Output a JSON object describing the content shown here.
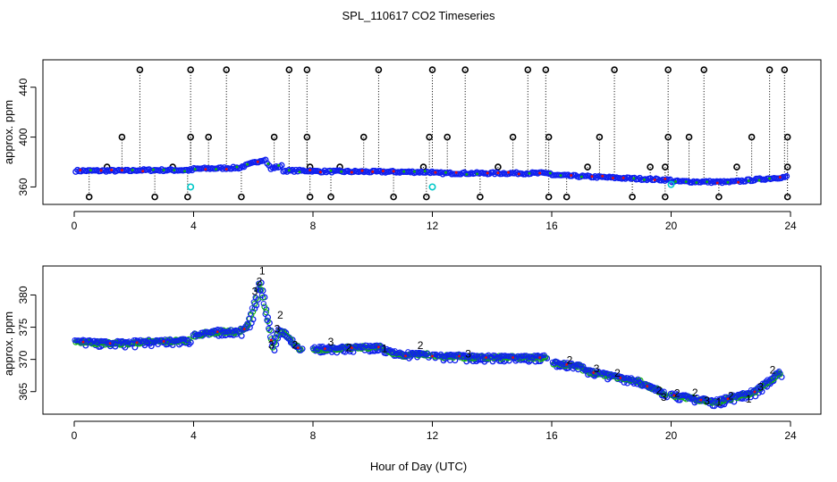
{
  "title": "SPL_110617  CO2 Timeseries",
  "xlabel": "Hour of Day (UTC)",
  "chart_data": [
    {
      "type": "scatter",
      "ylabel": "approx. ppm",
      "xlim": [
        0,
        24
      ],
      "ylim": [
        346,
        462
      ],
      "xticks": [
        "0",
        "4",
        "8",
        "12",
        "16",
        "20",
        "24"
      ],
      "yticks": [
        "360",
        "400",
        "440"
      ],
      "ytick_values": [
        360,
        400,
        440
      ],
      "outlier_high": [
        2.2,
        3.9,
        5.1,
        7.2,
        7.8,
        10.2,
        12.0,
        13.1,
        15.2,
        15.8,
        18.1,
        19.9,
        21.1,
        23.3,
        23.8
      ],
      "outlier_mid": [
        1.6,
        3.9,
        4.5,
        6.7,
        7.8,
        9.7,
        11.9,
        12.5,
        14.7,
        15.9,
        17.6,
        19.9,
        20.6,
        22.7,
        23.9
      ],
      "outlier_low": [
        1.1,
        3.3,
        7.9,
        8.9,
        11.7,
        14.2,
        17.2,
        19.3,
        19.8,
        22.2,
        23.9
      ],
      "outlier_floor": [
        0.5,
        2.7,
        3.8,
        5.6,
        7.9,
        8.6,
        10.7,
        11.8,
        13.6,
        15.9,
        16.5,
        18.7,
        19.8,
        21.6,
        23.9
      ],
      "cyan_points": [
        [
          3.9,
          360
        ],
        [
          12.0,
          360
        ],
        [
          20.0,
          362
        ]
      ]
    },
    {
      "type": "scatter",
      "ylabel": "approx. ppm",
      "xlim": [
        0,
        24
      ],
      "ylim": [
        361.5,
        384.5
      ],
      "xticks": [
        "0",
        "4",
        "8",
        "12",
        "16",
        "20",
        "24"
      ],
      "yticks": [
        "365",
        "370",
        "375",
        "380"
      ],
      "ytick_values": [
        365,
        370,
        375,
        380
      ],
      "gaps": [
        [
          3.9,
          4.0
        ],
        [
          7.6,
          8.0
        ],
        [
          11.9,
          12.0
        ],
        [
          15.8,
          16.0
        ],
        [
          19.8,
          20.0
        ]
      ],
      "series_markers": [
        "1",
        "2",
        "3"
      ]
    }
  ]
}
